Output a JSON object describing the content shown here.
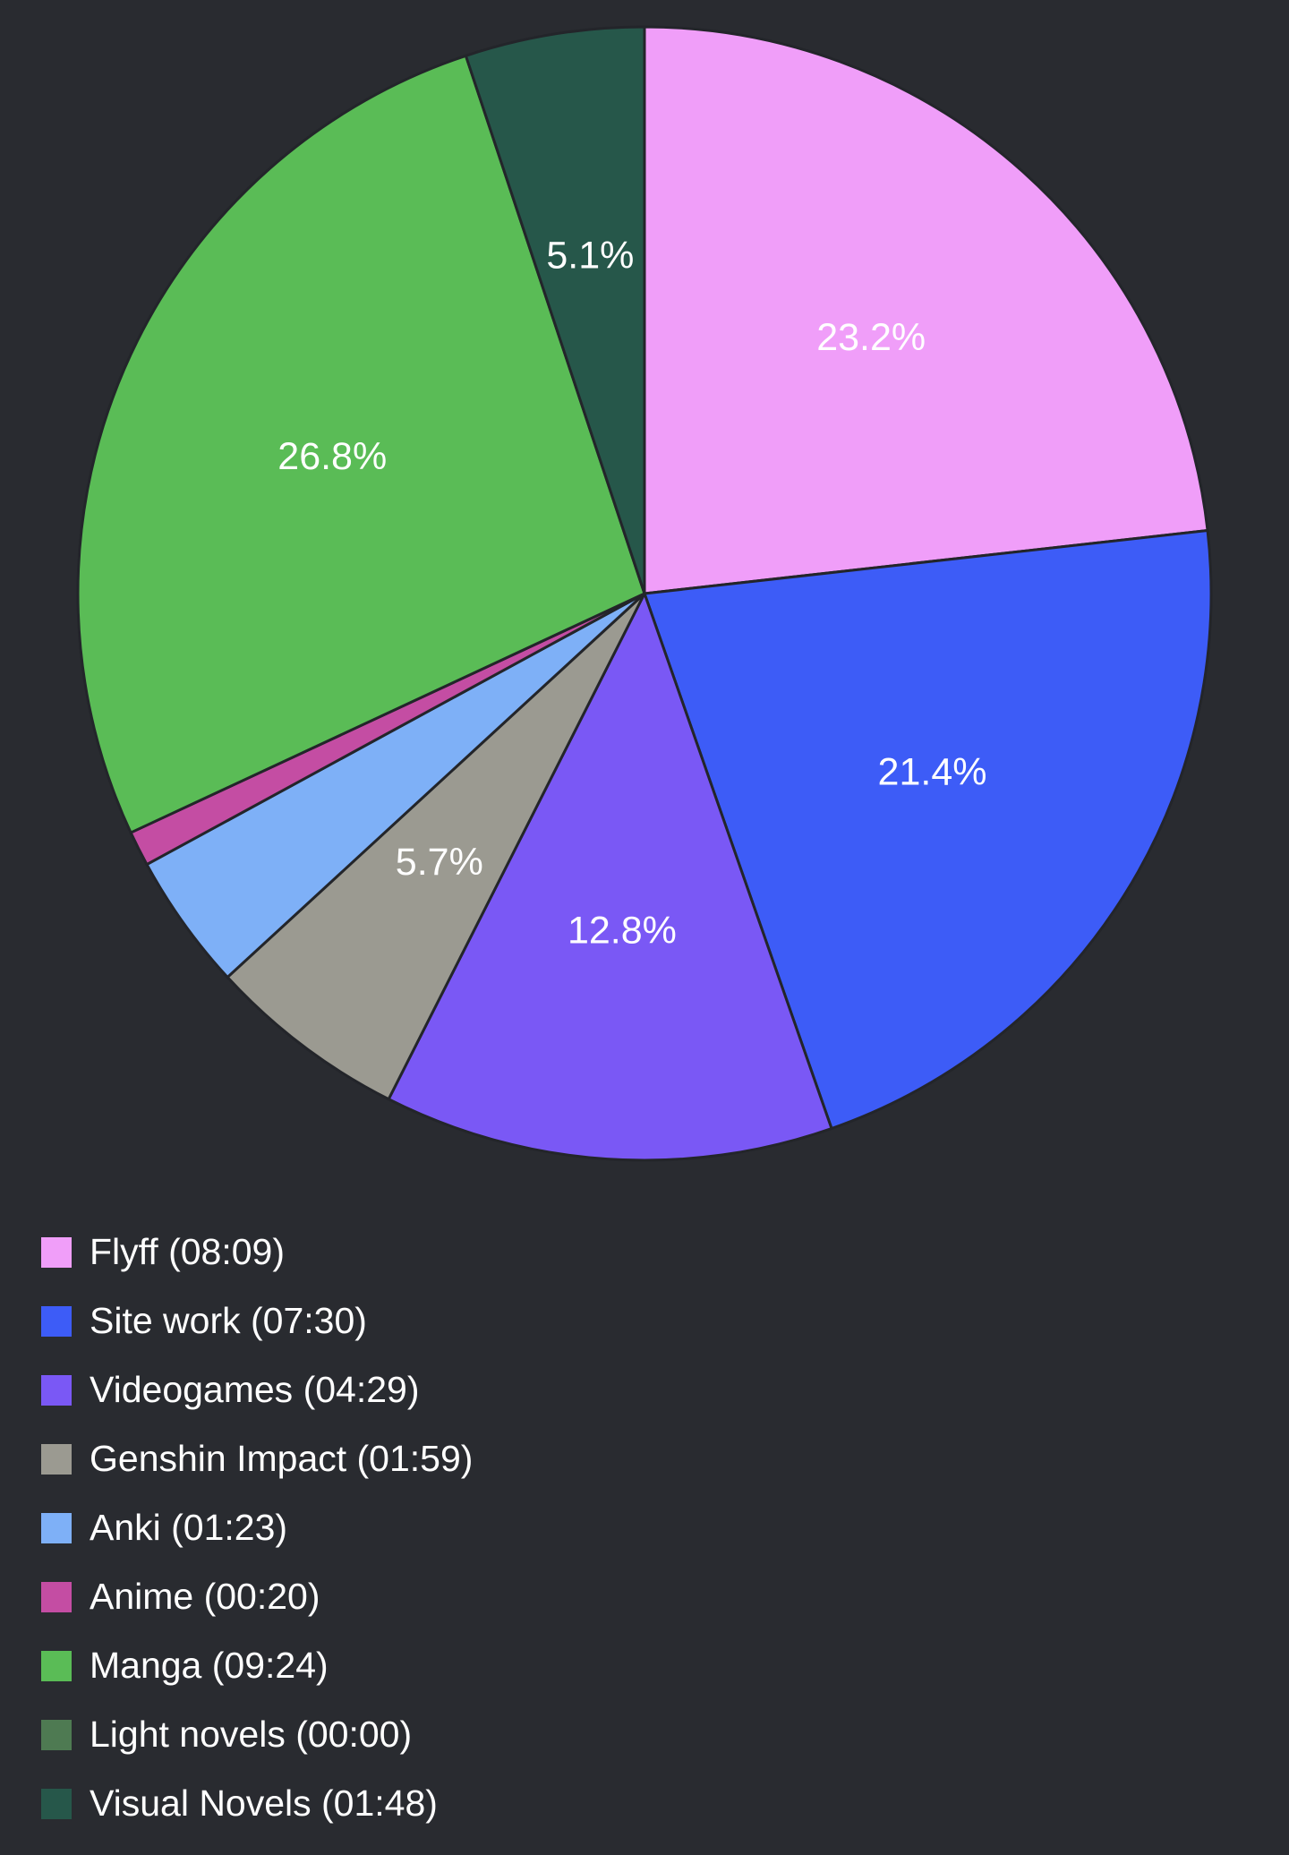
{
  "chart_data": {
    "type": "pie",
    "start_angle": "top, clockwise",
    "legend_position": "bottom-left",
    "slices": [
      {
        "name": "Flyff",
        "time": "08:09",
        "label": "Flyff (08:09)",
        "value": 23.2,
        "pct_label": "23.2%",
        "color": "#f09ef9"
      },
      {
        "name": "Site work",
        "time": "07:30",
        "label": "Site work (07:30)",
        "value": 21.4,
        "pct_label": "21.4%",
        "color": "#3d5cf7"
      },
      {
        "name": "Videogames",
        "time": "04:29",
        "label": "Videogames (04:29)",
        "value": 12.8,
        "pct_label": "12.8%",
        "color": "#7a58f5"
      },
      {
        "name": "Genshin Impact",
        "time": "01:59",
        "label": "Genshin Impact (01:59)",
        "value": 5.7,
        "pct_label": "5.7%",
        "color": "#9b9a91"
      },
      {
        "name": "Anki",
        "time": "01:23",
        "label": "Anki (01:23)",
        "value": 3.9,
        "pct_label": "",
        "color": "#7eb0f7"
      },
      {
        "name": "Anime",
        "time": "00:20",
        "label": "Anime (00:20)",
        "value": 1.0,
        "pct_label": "",
        "color": "#c44da3"
      },
      {
        "name": "Manga",
        "time": "09:24",
        "label": "Manga (09:24)",
        "value": 26.8,
        "pct_label": "26.8%",
        "color": "#5abc56"
      },
      {
        "name": "Light novels",
        "time": "00:00",
        "label": "Light novels (00:00)",
        "value": 0.0,
        "pct_label": "",
        "color": "#4e7a52"
      },
      {
        "name": "Visual Novels",
        "time": "01:48",
        "label": "Visual Novels (01:48)",
        "value": 5.1,
        "pct_label": "5.1%",
        "color": "#26574a"
      }
    ]
  }
}
